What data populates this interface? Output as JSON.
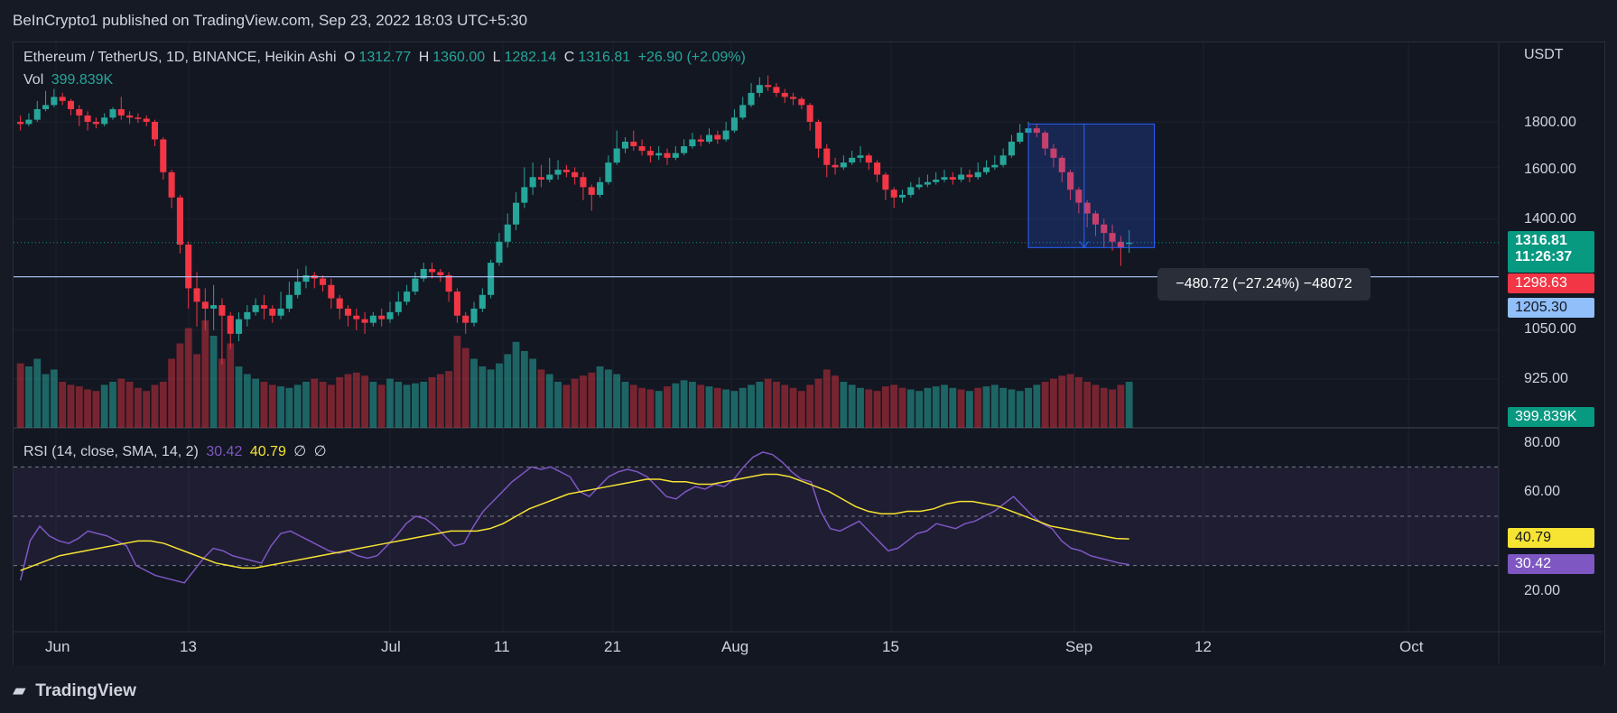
{
  "header": {
    "publisher": "BeInCrypto1 published on TradingView.com, Sep 23, 2022 18:03 UTC+5:30"
  },
  "legend": {
    "symbol": "Ethereum / TetherUS, 1D, BINANCE, Heikin Ashi",
    "o_label": "O",
    "o": "1312.77",
    "h_label": "H",
    "h": "1360.00",
    "l_label": "L",
    "l": "1282.14",
    "c_label": "C",
    "c": "1316.81",
    "change": "+26.90 (+2.09%)",
    "vol_label": "Vol",
    "vol": "399.839K",
    "rsi_label": "RSI (14, close, SMA, 14, 2)",
    "rsi": "30.42",
    "rsi_sma": "40.79",
    "extra1": "∅",
    "extra2": "∅"
  },
  "price_axis": {
    "currency": "USDT",
    "ticks": [
      "1800.00",
      "1600.00",
      "1400.00",
      "1050.00",
      "925.00"
    ]
  },
  "rsi_axis": {
    "ticks": [
      "80.00",
      "60.00",
      "20.00"
    ]
  },
  "tags": {
    "last_price": "1316.81",
    "countdown": "11:26:37",
    "red_level": "1298.63",
    "line_level": "1205.30",
    "volume": "399.839K",
    "rsi_sma": "40.79",
    "rsi": "30.42"
  },
  "measure": {
    "label": "−480.72 (−27.24%) −48072"
  },
  "x_axis": {
    "labels": [
      "Jun",
      "13",
      "Jul",
      "11",
      "21",
      "Aug",
      "15",
      "Sep",
      "12",
      "Oct"
    ]
  },
  "footer": {
    "logo": "TradingView"
  },
  "colors": {
    "up": "#26a69a",
    "down": "#f23645",
    "rsi": "#7e57c2",
    "rsi_sma": "#f7e332",
    "bg": "#131722"
  },
  "chart_data": {
    "type": "candlestick",
    "chart_style": "Heikin Ashi",
    "symbol": "ETH/USDT",
    "interval": "1D",
    "price_scale": "log",
    "horizontal_line": 1205.3,
    "candles": [
      {
        "o": 1800,
        "c": 1790,
        "h": 1830,
        "l": 1760
      },
      {
        "o": 1790,
        "c": 1810,
        "h": 1840,
        "l": 1780
      },
      {
        "o": 1810,
        "c": 1860,
        "h": 1900,
        "l": 1800
      },
      {
        "o": 1860,
        "c": 1880,
        "h": 1950,
        "l": 1850
      },
      {
        "o": 1880,
        "c": 1920,
        "h": 1960,
        "l": 1870
      },
      {
        "o": 1920,
        "c": 1900,
        "h": 1940,
        "l": 1880
      },
      {
        "o": 1900,
        "c": 1860,
        "h": 1910,
        "l": 1830
      },
      {
        "o": 1860,
        "c": 1830,
        "h": 1880,
        "l": 1780
      },
      {
        "o": 1830,
        "c": 1800,
        "h": 1850,
        "l": 1760
      },
      {
        "o": 1800,
        "c": 1790,
        "h": 1820,
        "l": 1770
      },
      {
        "o": 1790,
        "c": 1820,
        "h": 1840,
        "l": 1780
      },
      {
        "o": 1820,
        "c": 1860,
        "h": 1870,
        "l": 1810
      },
      {
        "o": 1860,
        "c": 1830,
        "h": 1920,
        "l": 1810
      },
      {
        "o": 1830,
        "c": 1820,
        "h": 1850,
        "l": 1790
      },
      {
        "o": 1820,
        "c": 1815,
        "h": 1840,
        "l": 1795
      },
      {
        "o": 1815,
        "c": 1800,
        "h": 1830,
        "l": 1780
      },
      {
        "o": 1800,
        "c": 1720,
        "h": 1810,
        "l": 1690
      },
      {
        "o": 1720,
        "c": 1580,
        "h": 1730,
        "l": 1550
      },
      {
        "o": 1580,
        "c": 1480,
        "h": 1590,
        "l": 1440
      },
      {
        "o": 1480,
        "c": 1310,
        "h": 1490,
        "l": 1280
      },
      {
        "o": 1310,
        "c": 1170,
        "h": 1320,
        "l": 1110
      },
      {
        "o": 1170,
        "c": 1130,
        "h": 1220,
        "l": 1060
      },
      {
        "o": 1130,
        "c": 1110,
        "h": 1170,
        "l": 1050
      },
      {
        "o": 1110,
        "c": 1120,
        "h": 1180,
        "l": 1050
      },
      {
        "o": 1120,
        "c": 1090,
        "h": 1140,
        "l": 960
      },
      {
        "o": 1090,
        "c": 1040,
        "h": 1100,
        "l": 1000
      },
      {
        "o": 1040,
        "c": 1080,
        "h": 1100,
        "l": 1020
      },
      {
        "o": 1080,
        "c": 1100,
        "h": 1120,
        "l": 1060
      },
      {
        "o": 1100,
        "c": 1120,
        "h": 1140,
        "l": 1090
      },
      {
        "o": 1120,
        "c": 1110,
        "h": 1150,
        "l": 1080
      },
      {
        "o": 1110,
        "c": 1090,
        "h": 1120,
        "l": 1070
      },
      {
        "o": 1090,
        "c": 1110,
        "h": 1160,
        "l": 1080
      },
      {
        "o": 1110,
        "c": 1150,
        "h": 1190,
        "l": 1100
      },
      {
        "o": 1150,
        "c": 1190,
        "h": 1230,
        "l": 1140
      },
      {
        "o": 1190,
        "c": 1210,
        "h": 1240,
        "l": 1170
      },
      {
        "o": 1210,
        "c": 1200,
        "h": 1220,
        "l": 1170
      },
      {
        "o": 1200,
        "c": 1180,
        "h": 1210,
        "l": 1160
      },
      {
        "o": 1180,
        "c": 1140,
        "h": 1200,
        "l": 1110
      },
      {
        "o": 1140,
        "c": 1110,
        "h": 1150,
        "l": 1080
      },
      {
        "o": 1110,
        "c": 1090,
        "h": 1120,
        "l": 1060
      },
      {
        "o": 1090,
        "c": 1080,
        "h": 1110,
        "l": 1050
      },
      {
        "o": 1080,
        "c": 1070,
        "h": 1100,
        "l": 1040
      },
      {
        "o": 1070,
        "c": 1090,
        "h": 1100,
        "l": 1060
      },
      {
        "o": 1090,
        "c": 1080,
        "h": 1110,
        "l": 1060
      },
      {
        "o": 1080,
        "c": 1100,
        "h": 1130,
        "l": 1070
      },
      {
        "o": 1100,
        "c": 1130,
        "h": 1160,
        "l": 1090
      },
      {
        "o": 1130,
        "c": 1160,
        "h": 1180,
        "l": 1120
      },
      {
        "o": 1160,
        "c": 1200,
        "h": 1220,
        "l": 1150
      },
      {
        "o": 1200,
        "c": 1230,
        "h": 1250,
        "l": 1190
      },
      {
        "o": 1230,
        "c": 1220,
        "h": 1250,
        "l": 1200
      },
      {
        "o": 1220,
        "c": 1210,
        "h": 1230,
        "l": 1190
      },
      {
        "o": 1210,
        "c": 1160,
        "h": 1220,
        "l": 1130
      },
      {
        "o": 1160,
        "c": 1090,
        "h": 1170,
        "l": 1070
      },
      {
        "o": 1090,
        "c": 1070,
        "h": 1100,
        "l": 1040
      },
      {
        "o": 1070,
        "c": 1110,
        "h": 1130,
        "l": 1060
      },
      {
        "o": 1110,
        "c": 1150,
        "h": 1170,
        "l": 1100
      },
      {
        "o": 1150,
        "c": 1250,
        "h": 1260,
        "l": 1140
      },
      {
        "o": 1250,
        "c": 1320,
        "h": 1350,
        "l": 1240
      },
      {
        "o": 1320,
        "c": 1380,
        "h": 1420,
        "l": 1300
      },
      {
        "o": 1380,
        "c": 1460,
        "h": 1500,
        "l": 1360
      },
      {
        "o": 1460,
        "c": 1520,
        "h": 1600,
        "l": 1440
      },
      {
        "o": 1520,
        "c": 1560,
        "h": 1620,
        "l": 1490
      },
      {
        "o": 1560,
        "c": 1550,
        "h": 1610,
        "l": 1520
      },
      {
        "o": 1550,
        "c": 1570,
        "h": 1640,
        "l": 1540
      },
      {
        "o": 1570,
        "c": 1590,
        "h": 1630,
        "l": 1550
      },
      {
        "o": 1590,
        "c": 1580,
        "h": 1610,
        "l": 1560
      },
      {
        "o": 1580,
        "c": 1560,
        "h": 1600,
        "l": 1530
      },
      {
        "o": 1560,
        "c": 1520,
        "h": 1580,
        "l": 1470
      },
      {
        "o": 1520,
        "c": 1490,
        "h": 1530,
        "l": 1430
      },
      {
        "o": 1490,
        "c": 1540,
        "h": 1560,
        "l": 1480
      },
      {
        "o": 1540,
        "c": 1620,
        "h": 1650,
        "l": 1530
      },
      {
        "o": 1620,
        "c": 1680,
        "h": 1760,
        "l": 1610
      },
      {
        "o": 1680,
        "c": 1710,
        "h": 1730,
        "l": 1660
      },
      {
        "o": 1710,
        "c": 1690,
        "h": 1760,
        "l": 1670
      },
      {
        "o": 1690,
        "c": 1670,
        "h": 1720,
        "l": 1650
      },
      {
        "o": 1670,
        "c": 1650,
        "h": 1690,
        "l": 1620
      },
      {
        "o": 1650,
        "c": 1660,
        "h": 1690,
        "l": 1630
      },
      {
        "o": 1660,
        "c": 1640,
        "h": 1680,
        "l": 1610
      },
      {
        "o": 1640,
        "c": 1660,
        "h": 1690,
        "l": 1630
      },
      {
        "o": 1660,
        "c": 1690,
        "h": 1720,
        "l": 1650
      },
      {
        "o": 1690,
        "c": 1720,
        "h": 1750,
        "l": 1680
      },
      {
        "o": 1720,
        "c": 1710,
        "h": 1740,
        "l": 1690
      },
      {
        "o": 1710,
        "c": 1740,
        "h": 1770,
        "l": 1700
      },
      {
        "o": 1740,
        "c": 1720,
        "h": 1760,
        "l": 1700
      },
      {
        "o": 1720,
        "c": 1760,
        "h": 1800,
        "l": 1710
      },
      {
        "o": 1760,
        "c": 1820,
        "h": 1860,
        "l": 1750
      },
      {
        "o": 1820,
        "c": 1880,
        "h": 1920,
        "l": 1810
      },
      {
        "o": 1880,
        "c": 1940,
        "h": 1990,
        "l": 1870
      },
      {
        "o": 1940,
        "c": 1980,
        "h": 2020,
        "l": 1920
      },
      {
        "o": 1980,
        "c": 1970,
        "h": 2030,
        "l": 1950
      },
      {
        "o": 1970,
        "c": 1940,
        "h": 1990,
        "l": 1920
      },
      {
        "o": 1940,
        "c": 1920,
        "h": 1960,
        "l": 1890
      },
      {
        "o": 1920,
        "c": 1910,
        "h": 1940,
        "l": 1880
      },
      {
        "o": 1910,
        "c": 1880,
        "h": 1920,
        "l": 1860
      },
      {
        "o": 1880,
        "c": 1800,
        "h": 1890,
        "l": 1760
      },
      {
        "o": 1800,
        "c": 1680,
        "h": 1810,
        "l": 1640
      },
      {
        "o": 1680,
        "c": 1610,
        "h": 1700,
        "l": 1560
      },
      {
        "o": 1610,
        "c": 1600,
        "h": 1640,
        "l": 1570
      },
      {
        "o": 1600,
        "c": 1620,
        "h": 1650,
        "l": 1590
      },
      {
        "o": 1620,
        "c": 1640,
        "h": 1670,
        "l": 1610
      },
      {
        "o": 1640,
        "c": 1650,
        "h": 1690,
        "l": 1620
      },
      {
        "o": 1650,
        "c": 1620,
        "h": 1660,
        "l": 1590
      },
      {
        "o": 1620,
        "c": 1570,
        "h": 1630,
        "l": 1540
      },
      {
        "o": 1570,
        "c": 1510,
        "h": 1580,
        "l": 1470
      },
      {
        "o": 1510,
        "c": 1480,
        "h": 1520,
        "l": 1440
      },
      {
        "o": 1480,
        "c": 1490,
        "h": 1510,
        "l": 1460
      },
      {
        "o": 1490,
        "c": 1520,
        "h": 1540,
        "l": 1480
      },
      {
        "o": 1520,
        "c": 1530,
        "h": 1560,
        "l": 1510
      },
      {
        "o": 1530,
        "c": 1540,
        "h": 1570,
        "l": 1520
      },
      {
        "o": 1540,
        "c": 1550,
        "h": 1580,
        "l": 1530
      },
      {
        "o": 1550,
        "c": 1560,
        "h": 1590,
        "l": 1540
      },
      {
        "o": 1560,
        "c": 1550,
        "h": 1580,
        "l": 1530
      },
      {
        "o": 1550,
        "c": 1570,
        "h": 1600,
        "l": 1540
      },
      {
        "o": 1570,
        "c": 1560,
        "h": 1590,
        "l": 1540
      },
      {
        "o": 1560,
        "c": 1580,
        "h": 1620,
        "l": 1550
      },
      {
        "o": 1580,
        "c": 1600,
        "h": 1630,
        "l": 1570
      },
      {
        "o": 1600,
        "c": 1610,
        "h": 1650,
        "l": 1590
      },
      {
        "o": 1610,
        "c": 1650,
        "h": 1680,
        "l": 1600
      },
      {
        "o": 1650,
        "c": 1710,
        "h": 1740,
        "l": 1640
      },
      {
        "o": 1710,
        "c": 1750,
        "h": 1790,
        "l": 1700
      },
      {
        "o": 1750,
        "c": 1770,
        "h": 1800,
        "l": 1740
      },
      {
        "o": 1770,
        "c": 1750,
        "h": 1790,
        "l": 1730
      },
      {
        "o": 1750,
        "c": 1680,
        "h": 1760,
        "l": 1650
      },
      {
        "o": 1680,
        "c": 1640,
        "h": 1700,
        "l": 1600
      },
      {
        "o": 1640,
        "c": 1580,
        "h": 1650,
        "l": 1540
      },
      {
        "o": 1580,
        "c": 1510,
        "h": 1590,
        "l": 1470
      },
      {
        "o": 1510,
        "c": 1460,
        "h": 1520,
        "l": 1420
      },
      {
        "o": 1460,
        "c": 1420,
        "h": 1470,
        "l": 1370
      },
      {
        "o": 1420,
        "c": 1380,
        "h": 1430,
        "l": 1340
      },
      {
        "o": 1380,
        "c": 1350,
        "h": 1400,
        "l": 1300
      },
      {
        "o": 1350,
        "c": 1320,
        "h": 1380,
        "l": 1290
      },
      {
        "o": 1320,
        "c": 1300,
        "h": 1340,
        "l": 1240
      },
      {
        "o": 1312.77,
        "c": 1316.81,
        "h": 1360.0,
        "l": 1282.14
      }
    ],
    "volume": [
      42,
      40,
      45,
      35,
      38,
      30,
      28,
      27,
      25,
      24,
      28,
      30,
      32,
      30,
      26,
      24,
      28,
      30,
      45,
      55,
      65,
      48,
      70,
      60,
      45,
      55,
      40,
      35,
      32,
      30,
      28,
      27,
      26,
      28,
      30,
      32,
      30,
      28,
      33,
      35,
      36,
      34,
      30,
      28,
      32,
      30,
      28,
      29,
      30,
      33,
      35,
      37,
      60,
      52,
      45,
      40,
      38,
      42,
      48,
      56,
      50,
      45,
      38,
      35,
      30,
      28,
      32,
      34,
      36,
      40,
      38,
      35,
      30,
      28,
      26,
      25,
      24,
      27,
      29,
      31,
      30,
      28,
      27,
      26,
      25,
      24,
      26,
      28,
      30,
      32,
      30,
      28,
      26,
      24,
      28,
      32,
      38,
      34,
      30,
      28,
      26,
      25,
      24,
      27,
      28,
      26,
      25,
      24,
      26,
      27,
      28,
      26,
      25,
      24,
      26,
      27,
      28,
      26,
      25,
      24,
      26,
      28,
      30,
      32,
      34,
      35,
      33,
      30,
      28,
      26,
      25,
      28,
      30,
      29,
      28,
      26
    ],
    "volume_up": [
      false,
      true,
      true,
      true,
      true,
      false,
      false,
      false,
      false,
      false,
      true,
      true,
      false,
      false,
      false,
      false,
      false,
      false,
      false,
      false,
      false,
      false,
      false,
      true,
      false,
      false,
      true,
      true,
      true,
      false,
      false,
      true,
      true,
      true,
      true,
      false,
      false,
      false,
      false,
      false,
      false,
      false,
      true,
      false,
      true,
      true,
      true,
      true,
      true,
      false,
      false,
      false,
      false,
      false,
      true,
      true,
      true,
      true,
      true,
      true,
      true,
      true,
      false,
      true,
      true,
      false,
      false,
      false,
      false,
      true,
      true,
      true,
      true,
      false,
      false,
      false,
      true,
      false,
      true,
      true,
      true,
      false,
      true,
      false,
      true,
      true,
      true,
      true,
      true,
      false,
      false,
      false,
      false,
      false,
      false,
      false,
      false,
      false,
      true,
      true,
      true,
      false,
      false,
      false,
      false,
      false,
      true,
      true,
      true,
      true,
      true,
      true,
      false,
      true,
      false,
      true,
      true,
      true,
      true,
      true,
      true,
      true,
      false,
      false,
      false,
      false,
      false,
      false,
      false,
      false,
      false,
      false,
      true,
      true,
      true,
      true
    ],
    "rsi": [
      24,
      40,
      46,
      42,
      40,
      39,
      41,
      44,
      43,
      42,
      40,
      38,
      30,
      28,
      26,
      25,
      24,
      23,
      28,
      33,
      37,
      36,
      34,
      33,
      32,
      31,
      38,
      43,
      44,
      42,
      40,
      38,
      36,
      35,
      36,
      34,
      33,
      34,
      38,
      42,
      47,
      50,
      49,
      46,
      42,
      38,
      39,
      46,
      52,
      56,
      60,
      64,
      67,
      70,
      69,
      70,
      68,
      66,
      60,
      58,
      62,
      66,
      68,
      69,
      68,
      66,
      62,
      58,
      57,
      60,
      62,
      61,
      63,
      62,
      65,
      70,
      74,
      76,
      75,
      72,
      68,
      65,
      64,
      52,
      45,
      44,
      46,
      48,
      44,
      40,
      36,
      37,
      40,
      43,
      44,
      47,
      46,
      45,
      47,
      48,
      50,
      52,
      55,
      58,
      54,
      50,
      47,
      45,
      40,
      37,
      36,
      34,
      33,
      32,
      31,
      30.42
    ],
    "rsi_sma": [
      28,
      30,
      32,
      34,
      35,
      36,
      37,
      38,
      39,
      40,
      40,
      39,
      37,
      35,
      33,
      31,
      30,
      29,
      29,
      30,
      31,
      32,
      33,
      34,
      35,
      36,
      37,
      38,
      39,
      40,
      41,
      42,
      43,
      44,
      44,
      44,
      45,
      47,
      50,
      53,
      55,
      57,
      59,
      60,
      61,
      62,
      63,
      64,
      65,
      65,
      64,
      64,
      63,
      63,
      64,
      65,
      66,
      67,
      67,
      66,
      64,
      62,
      60,
      57,
      54,
      52,
      51,
      51,
      52,
      52,
      53,
      55,
      56,
      56,
      55,
      54,
      52,
      50,
      48,
      46,
      45,
      44,
      43,
      42,
      41,
      40.79
    ],
    "rsi_levels": [
      70,
      50,
      30
    ],
    "rsi_ylim": [
      10,
      85
    ],
    "x_tick_labels": [
      "Jun",
      "13",
      "Jul",
      "11",
      "21",
      "Aug",
      "15",
      "Sep",
      "12",
      "Oct"
    ],
    "measure_range": {
      "change": -480.72,
      "percent": -27.24,
      "ticks": -48072
    }
  }
}
